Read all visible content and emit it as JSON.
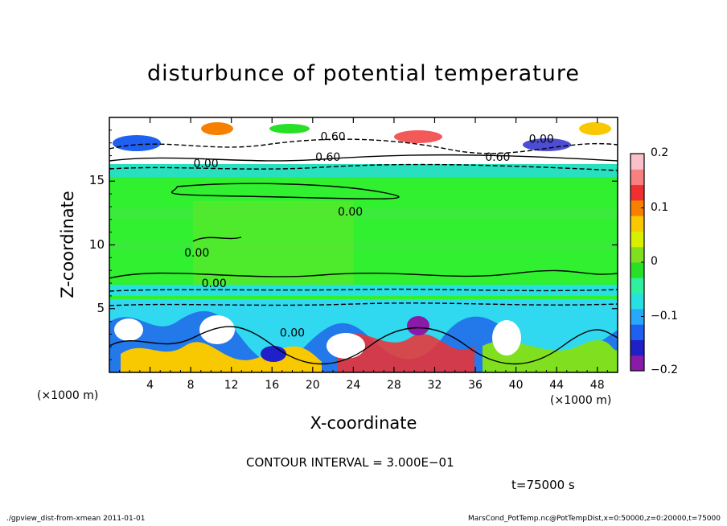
{
  "chart_data": {
    "type": "heatmap",
    "title": "disturbunce of potential temperature",
    "xlabel": "X-coordinate",
    "ylabel": "Z-coordinate",
    "x_unit_label": "(×1000 m)",
    "xlim": [
      0,
      50
    ],
    "ylim": [
      0,
      20
    ],
    "x_ticks": [
      4,
      8,
      12,
      16,
      20,
      24,
      28,
      32,
      36,
      40,
      44,
      48
    ],
    "y_ticks": [
      5,
      10,
      15
    ],
    "colorbar": {
      "range": [
        -0.2,
        0.2
      ],
      "tick_values": [
        0.2,
        0.1,
        0,
        -0.1,
        -0.2
      ],
      "tick_labels": [
        "0.2",
        "0.1",
        "0",
        "−0.1",
        "−0.2"
      ],
      "colors": [
        "#8a1aa8",
        "#2020c8",
        "#2060f0",
        "#28a8f8",
        "#28e0e0",
        "#30f0a0",
        "#28e028",
        "#80e020",
        "#d8f000",
        "#f8c800",
        "#f88000",
        "#f03030",
        "#f88080",
        "#f8c0c8"
      ]
    },
    "contour_labels": [
      {
        "x": 9.5,
        "z": 16.1,
        "text": "0.00"
      },
      {
        "x": 23.7,
        "z": 12.3,
        "text": "0.00"
      },
      {
        "x": 8.6,
        "z": 9.1,
        "text": "0.00"
      },
      {
        "x": 10.3,
        "z": 6.7,
        "text": "0.00"
      },
      {
        "x": 18.0,
        "z": 2.8,
        "text": "0.00"
      },
      {
        "x": 22.0,
        "z": 18.2,
        "text": "0.60"
      },
      {
        "x": 21.5,
        "z": 16.6,
        "text": "0.60"
      },
      {
        "x": 38.2,
        "z": 16.6,
        "text": "0.60"
      },
      {
        "x": 42.5,
        "z": 18.0,
        "text": "0.00"
      }
    ],
    "grid": false,
    "legend": "colorbar-right"
  },
  "annotations": {
    "x_unit_left": "(×1000 m)",
    "x_unit_right": "(×1000 m)",
    "contour_interval": "CONTOUR INTERVAL = 3.000E−01",
    "time": "t=75000 s",
    "footer_left": "./gpview_dist-from-xmean   2011-01-01",
    "footer_right": "MarsCond_PotTemp.nc@PotTempDist,x=0:50000,z=0:20000,t=75000"
  }
}
